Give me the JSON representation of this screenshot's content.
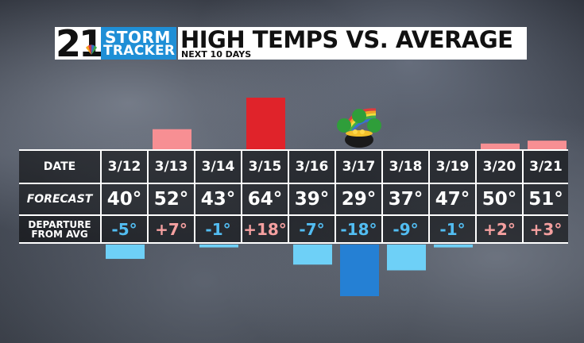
{
  "header": {
    "logo_number": "21",
    "logo_line1": "STORM",
    "logo_line2": "TRACKER",
    "title": "HIGH TEMPS VS. AVERAGE",
    "subtitle": "NEXT 10 DAYS"
  },
  "colors": {
    "warm_strong": "#e0232a",
    "warm_light": "#f78f93",
    "cool_strong": "#2580d4",
    "cool_light": "#6ed0f7",
    "positive_text": "#f5a0a0",
    "negative_text": "#52bdf2",
    "stormtracker_blue": "#1f8fd6"
  },
  "chart_data": {
    "type": "bar",
    "title": "HIGH TEMPS VS. AVERAGE",
    "subtitle": "NEXT 10 DAYS",
    "categories": [
      "3/12",
      "3/13",
      "3/14",
      "3/15",
      "3/16",
      "3/17",
      "3/18",
      "3/19",
      "3/20",
      "3/21"
    ],
    "forecast": [
      40,
      52,
      43,
      64,
      39,
      29,
      37,
      47,
      50,
      51
    ],
    "departure": [
      -5,
      7,
      -1,
      18,
      -7,
      -18,
      -9,
      -1,
      2,
      3
    ],
    "forecast_text": [
      "40°",
      "52°",
      "43°",
      "64°",
      "39°",
      "29°",
      "37°",
      "47°",
      "50°",
      "51°"
    ],
    "departure_text": [
      "-5°",
      "+7°",
      "-1°",
      "+18°",
      "-7°",
      "-18°",
      "-9°",
      "-1°",
      "+2°",
      "+3°"
    ],
    "row_labels": {
      "date": "DATE",
      "forecast": "FORECAST",
      "departure_line1": "DEPARTURE",
      "departure_line2": "FROM AVG"
    },
    "ylim": [
      -18,
      18
    ],
    "icon": "shamrock-pot-of-gold-icon"
  }
}
